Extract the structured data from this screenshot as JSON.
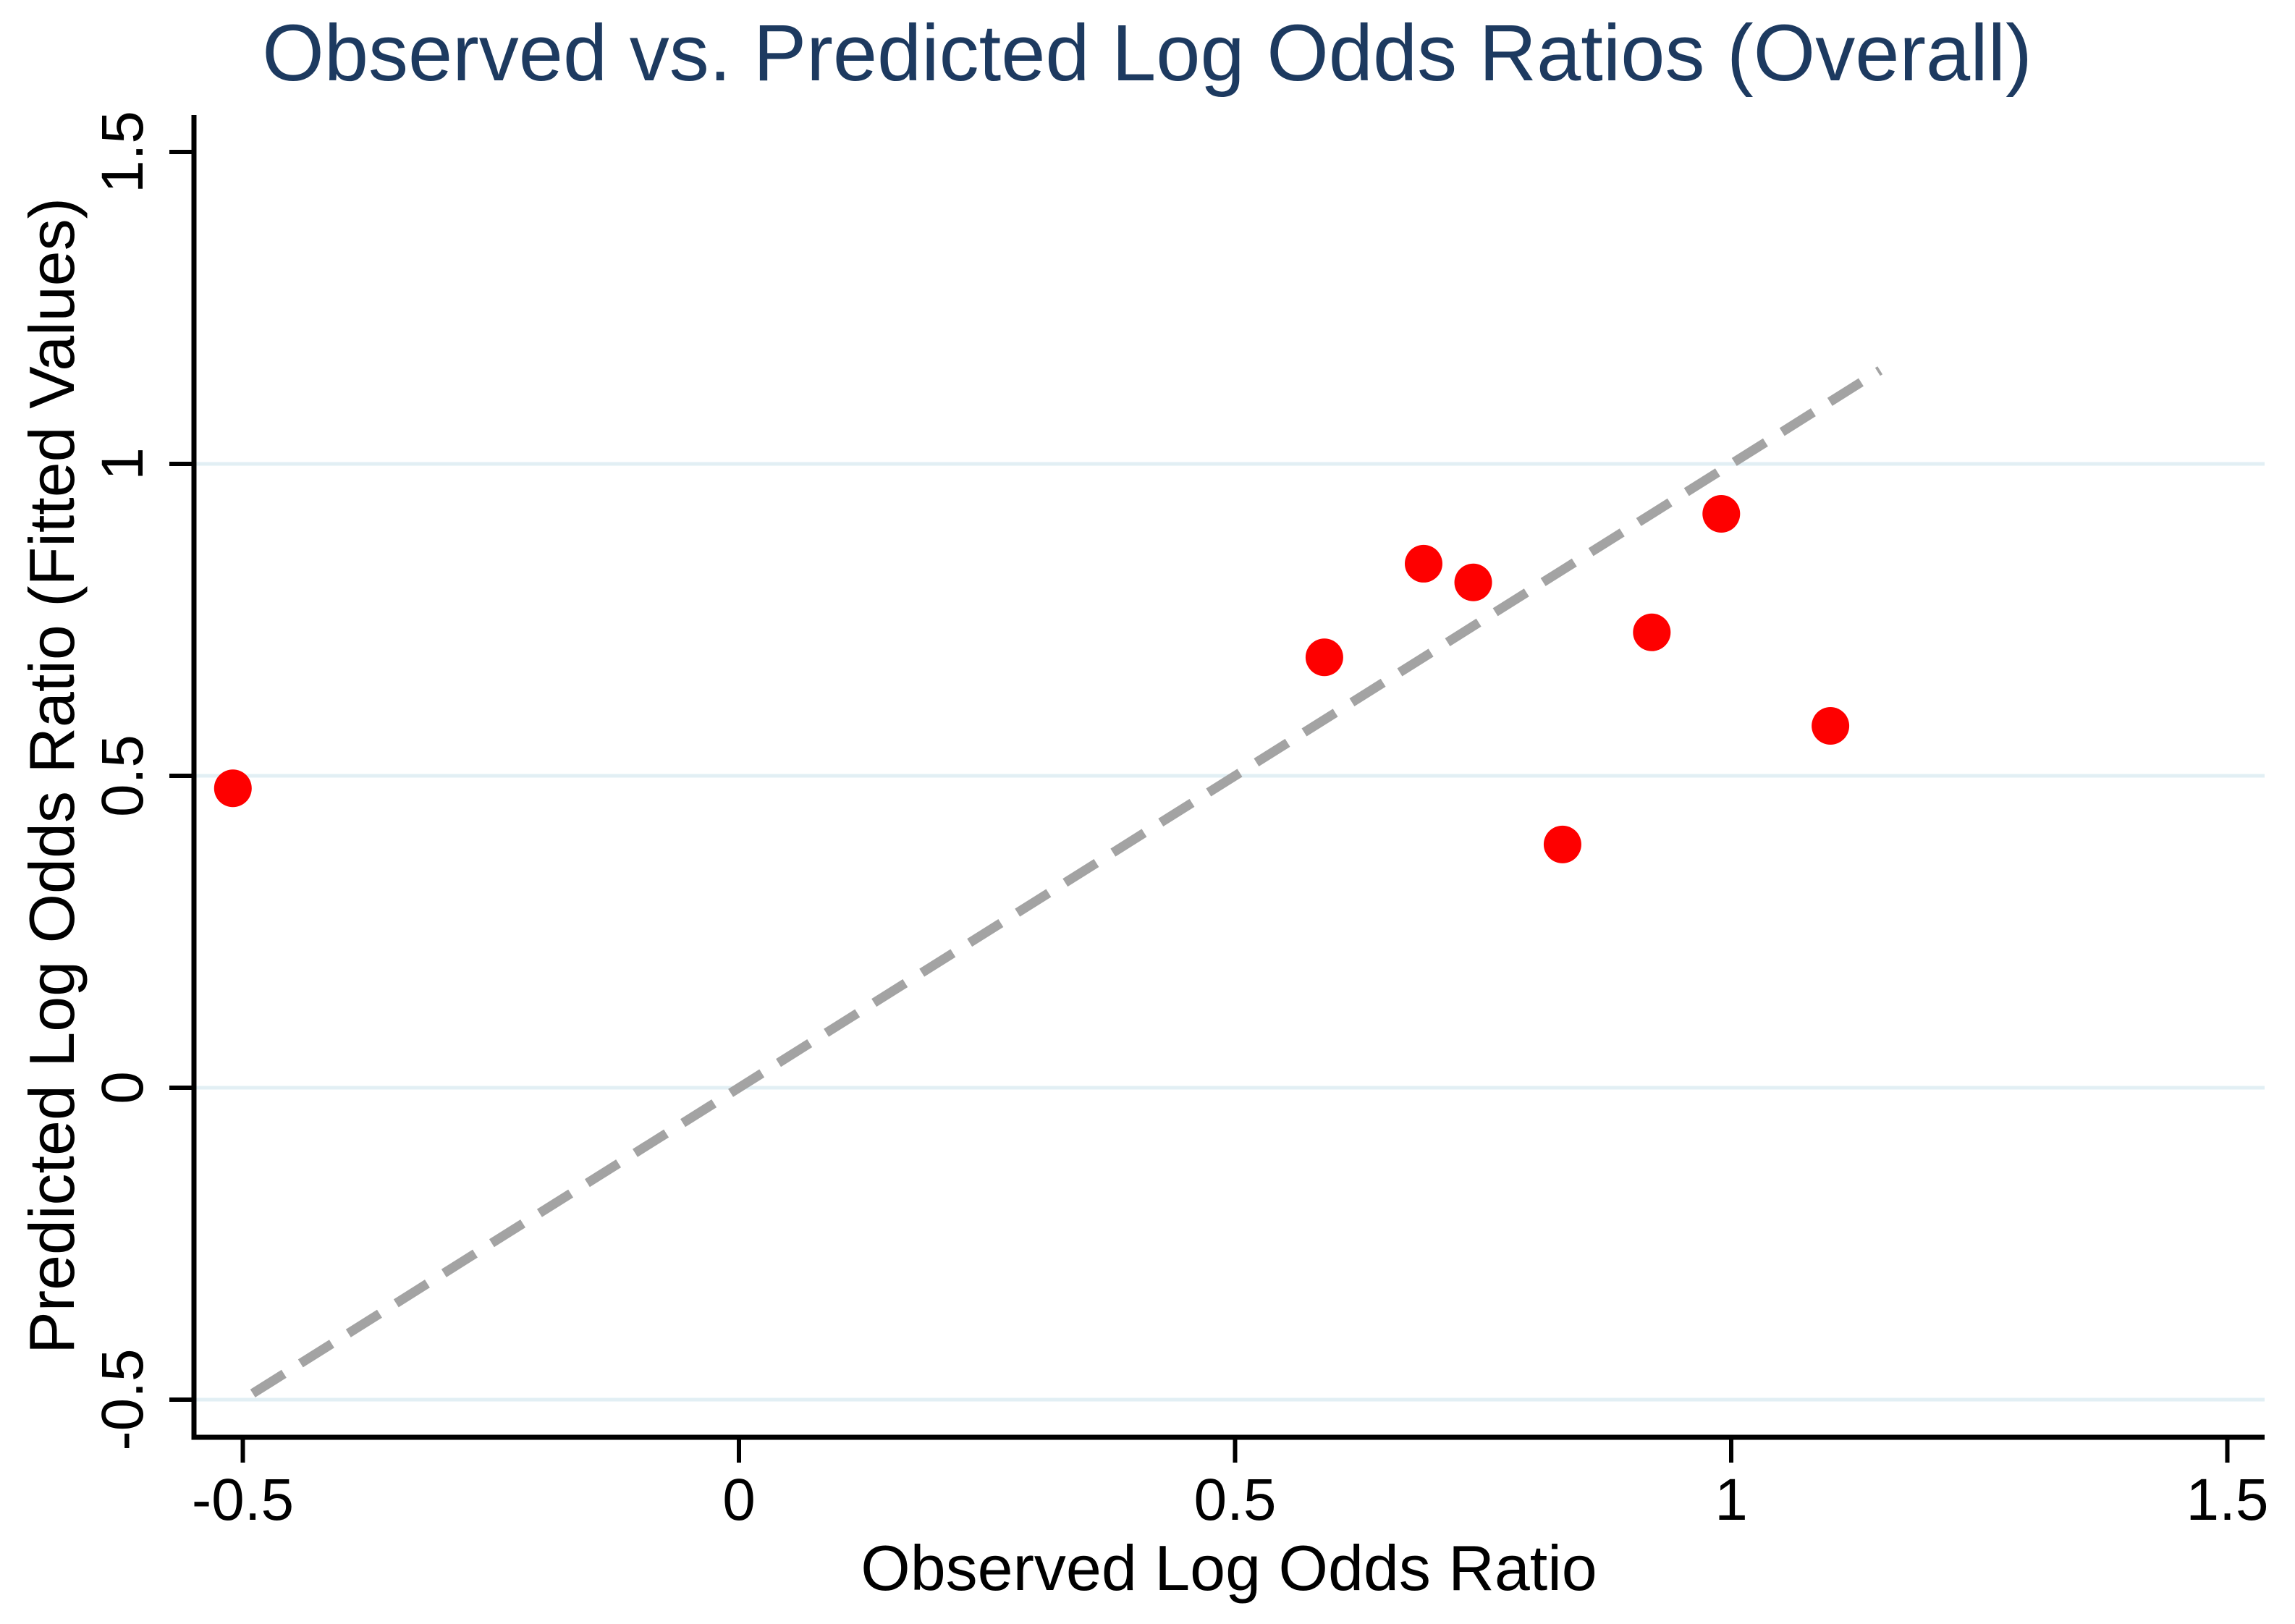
{
  "chart_data": {
    "type": "scatter",
    "title": "Observed vs. Predicted Log Odds Ratios (Overall)",
    "xlabel": "Observed Log Odds Ratio",
    "ylabel": "Predicted Log Odds Ratio (Fitted Values)",
    "xlim": [
      -0.55,
      1.54
    ],
    "ylim": [
      -0.56,
      1.56
    ],
    "grid": "horizontal-only",
    "legend_position": "none",
    "xticks": [
      {
        "value": -0.5,
        "label": "-0.5"
      },
      {
        "value": 0,
        "label": "0"
      },
      {
        "value": 0.5,
        "label": "0.5"
      },
      {
        "value": 1,
        "label": "1"
      },
      {
        "value": 1.5,
        "label": "1.5"
      }
    ],
    "yticks": [
      {
        "value": 1.5,
        "label": "1.5"
      },
      {
        "value": 1,
        "label": "1"
      },
      {
        "value": 0.5,
        "label": "0.5"
      },
      {
        "value": 0,
        "label": "0"
      },
      {
        "value": -0.5,
        "label": "-0.5"
      }
    ],
    "grid_y_values": [
      1,
      0.5,
      0,
      -0.5
    ],
    "series": [
      {
        "name": "observed-vs-predicted-points",
        "marker": "filled-circle",
        "color": "#fe0000",
        "points": [
          {
            "x": -0.51,
            "y": 0.48
          },
          {
            "x": 0.59,
            "y": 0.69
          },
          {
            "x": 0.69,
            "y": 0.84
          },
          {
            "x": 0.74,
            "y": 0.81
          },
          {
            "x": 0.83,
            "y": 0.39
          },
          {
            "x": 0.92,
            "y": 0.73
          },
          {
            "x": 0.99,
            "y": 0.92
          },
          {
            "x": 1.1,
            "y": 0.58
          }
        ]
      }
    ],
    "identity_line": {
      "style": "dashed",
      "color": "#a3a3a3",
      "x_start": -0.49,
      "y_start": -0.49,
      "x_end": 1.15,
      "y_end": 1.15
    },
    "colors": {
      "title": "#1d3a60",
      "axis": "#000000",
      "grid": "#e2eff4",
      "point": "#fe0000",
      "dash": "#a3a3a3",
      "background": "#ffffff"
    }
  }
}
